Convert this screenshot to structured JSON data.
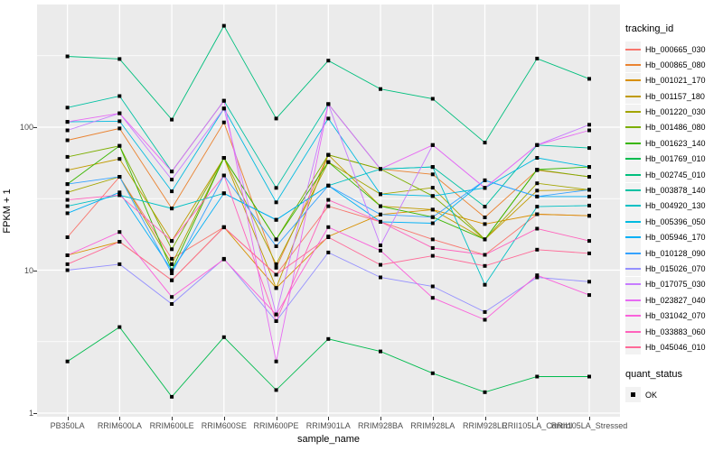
{
  "figure": {
    "y_axis": {
      "title": "FPKM + 1",
      "ticks": [
        {
          "label": "100",
          "value": 100
        },
        {
          "label": "10",
          "value": 10
        },
        {
          "label": "1",
          "value": 1
        }
      ]
    },
    "x_axis": {
      "title": "sample_name"
    },
    "legend": {
      "tracking_title": "tracking_id",
      "quant_title": "quant_status",
      "quant_items": [
        {
          "label": "OK"
        }
      ]
    },
    "colors": {
      "panel_bg": "#EBEBEB",
      "grid": "#FFFFFF",
      "legend_key_bg": "#F2F2F2",
      "axis_text": "#4D4D4D",
      "point": "#000000"
    }
  },
  "chart_data": {
    "type": "line",
    "title": "",
    "xlabel": "sample_name",
    "ylabel": "FPKM + 1",
    "y_scale": "log10",
    "ylim": [
      1,
      600
    ],
    "y_major_gridlines": [
      1,
      10,
      100
    ],
    "y_minor_gridlines": [
      3.1623,
      31.623,
      316.23
    ],
    "grid": true,
    "legend_position": "right",
    "point_shape": "square",
    "quant_status": "OK",
    "categories": [
      "PB350LA",
      "RRIM600LA",
      "RRIM600LE",
      "RRIM600SE",
      "RRIM600PE",
      "RRIM901LA",
      "RRIM928BA",
      "RRIM928LA",
      "RRIM928LE",
      "RRII105LA_Control",
      "RRII105LA_Stressed"
    ],
    "series": [
      {
        "name": "Hb_000665_030",
        "color": "#F8766D",
        "values": [
          17,
          45,
          12,
          20,
          9.3,
          28,
          21.8,
          16.4,
          12.8,
          24.6,
          24
        ]
      },
      {
        "name": "Hb_000865_080",
        "color": "#EA8331",
        "values": [
          81,
          98,
          27,
          108,
          10.4,
          64,
          51,
          46.8,
          23.4,
          50,
          45
        ]
      },
      {
        "name": "Hb_001021_170",
        "color": "#D89000",
        "values": [
          12.7,
          15.8,
          8.5,
          20,
          7.5,
          17.2,
          24.5,
          26.5,
          21,
          24.6,
          24
        ]
      },
      {
        "name": "Hb_001157_180",
        "color": "#C09B00",
        "values": [
          50,
          60,
          16,
          61,
          7.5,
          64,
          28,
          26.5,
          16.4,
          36,
          36.5
        ]
      },
      {
        "name": "Hb_001220_030",
        "color": "#A3A500",
        "values": [
          35,
          45,
          11,
          61,
          11,
          57,
          34,
          37.7,
          16.4,
          40.5,
          36.5
        ]
      },
      {
        "name": "Hb_001486_080",
        "color": "#7CAE00",
        "values": [
          62,
          74,
          14,
          61,
          16.4,
          64,
          51,
          33,
          16.4,
          50.5,
          45
        ]
      },
      {
        "name": "Hb_001623_140",
        "color": "#39B600",
        "values": [
          40,
          74,
          10,
          61,
          16.4,
          57,
          28,
          23.5,
          16.4,
          50.5,
          52.7
        ]
      },
      {
        "name": "Hb_001769_010",
        "color": "#00BB4E",
        "values": [
          2.3,
          4.0,
          1.3,
          3.4,
          1.45,
          3.3,
          2.7,
          1.9,
          1.4,
          1.8,
          1.8
        ]
      },
      {
        "name": "Hb_002745_010",
        "color": "#00BF7D",
        "values": [
          313,
          300,
          113,
          512,
          115,
          292,
          185,
          158,
          78,
          302,
          218
        ]
      },
      {
        "name": "Hb_003878_140",
        "color": "#00C1A3",
        "values": [
          137,
          165,
          49,
          153,
          37.6,
          145,
          51,
          52.7,
          27.8,
          75,
          71.5
        ]
      },
      {
        "name": "Hb_004920_130",
        "color": "#00C0C4",
        "values": [
          28,
          33.5,
          27,
          34.5,
          22.5,
          39,
          51,
          52.7,
          7.9,
          27.8,
          28.3
        ]
      },
      {
        "name": "Hb_005396_050",
        "color": "#00BAE0",
        "values": [
          109,
          110,
          35.6,
          135,
          29.8,
          115,
          34,
          33,
          37.6,
          61,
          52.7
        ]
      },
      {
        "name": "Hb_005946_170",
        "color": "#00B0F6",
        "values": [
          25,
          35,
          10,
          34.5,
          22.5,
          39,
          21.8,
          21.3,
          42.5,
          32.7,
          32.7
        ]
      },
      {
        "name": "Hb_010128_090",
        "color": "#35A2FF",
        "values": [
          40,
          45,
          9.5,
          46,
          14.7,
          39,
          24.5,
          23.5,
          42.5,
          32.7,
          36.5
        ]
      },
      {
        "name": "Hb_015026_070",
        "color": "#9590FF",
        "values": [
          10,
          11,
          5.8,
          12,
          4.4,
          13.3,
          8.9,
          7.7,
          5.1,
          8.9,
          8.3
        ]
      },
      {
        "name": "Hb_017075_030",
        "color": "#C77CFF",
        "values": [
          95,
          125,
          43,
          135,
          4.9,
          145,
          14.9,
          75,
          37.6,
          75,
          104
        ]
      },
      {
        "name": "Hb_023827_040",
        "color": "#E76BF3",
        "values": [
          109,
          125,
          49,
          153,
          2.3,
          145,
          51,
          75,
          37.6,
          75,
          95
        ]
      },
      {
        "name": "Hb_031042_070",
        "color": "#FA62DB",
        "values": [
          12.7,
          18.5,
          6.5,
          11.9,
          4.9,
          20,
          13.7,
          6.4,
          4.5,
          9.2,
          6.7
        ]
      },
      {
        "name": "Hb_033883_060",
        "color": "#FF62BC",
        "values": [
          31,
          33.5,
          16,
          46,
          4.4,
          31,
          21.8,
          14.3,
          12.8,
          19.5,
          16
        ]
      },
      {
        "name": "Hb_045046_010",
        "color": "#FF6A98",
        "values": [
          11,
          15.8,
          8.5,
          19.9,
          9.3,
          17,
          10.9,
          12.6,
          10.7,
          13.9,
          13.1
        ]
      }
    ]
  }
}
